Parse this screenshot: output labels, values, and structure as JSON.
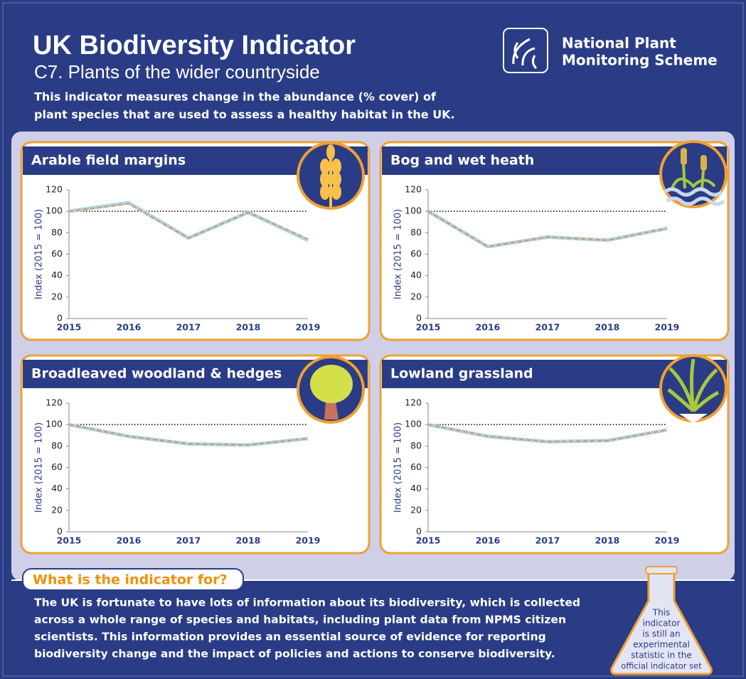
{
  "header": {
    "title": "UK Biodiversity Indicator",
    "subtitle": "C7. Plants of the wider countryside",
    "description": [
      "This indicator measures change in the abundance (% cover) of",
      "plant species that are used to assess a healthy habitat in the UK."
    ],
    "logo": [
      "National Plant",
      "Monitoring Scheme"
    ]
  },
  "chart_data": [
    {
      "type": "line",
      "title": "Arable field margins",
      "y_label": "Index (2015 = 100)",
      "categories": [
        "2015",
        "2016",
        "2017",
        "2018",
        "2019"
      ],
      "series": [
        {
          "color": "#a8d4ee",
          "dashed": false,
          "values": [
            100,
            108,
            75,
            99,
            73
          ]
        },
        {
          "color": "#e8953a",
          "dashed": true,
          "values": [
            100,
            107,
            75,
            99,
            74
          ]
        }
      ],
      "ylim": [
        0,
        120
      ],
      "yticks": [
        0,
        20,
        40,
        60,
        80,
        100,
        120
      ],
      "reference_line": 100
    },
    {
      "type": "line",
      "title": "Bog and wet heath",
      "y_label": "Index (2015 = 100)",
      "categories": [
        "2015",
        "2016",
        "2017",
        "2018",
        "2019"
      ],
      "series": [
        {
          "color": "#a8d4ee",
          "dashed": false,
          "values": [
            100,
            67,
            76,
            73,
            84
          ]
        },
        {
          "color": "#e8953a",
          "dashed": true,
          "values": [
            100,
            67,
            76,
            73,
            84
          ]
        }
      ],
      "ylim": [
        0,
        120
      ],
      "yticks": [
        0,
        20,
        40,
        60,
        80,
        100,
        120
      ],
      "reference_line": 100
    },
    {
      "type": "line",
      "title": "Broadleaved woodland & hedges",
      "y_label": "Index (2015 = 100)",
      "categories": [
        "2015",
        "2016",
        "2017",
        "2018",
        "2019"
      ],
      "series": [
        {
          "color": "#a8d4ee",
          "dashed": false,
          "values": [
            100,
            89,
            82,
            81,
            87
          ]
        },
        {
          "color": "#e8953a",
          "dashed": true,
          "values": [
            100,
            89,
            82,
            81,
            87
          ]
        }
      ],
      "ylim": [
        0,
        120
      ],
      "yticks": [
        0,
        20,
        40,
        60,
        80,
        100,
        120
      ],
      "reference_line": 100
    },
    {
      "type": "line",
      "title": "Lowland grassland",
      "y_label": "Index (2015 = 100)",
      "categories": [
        "2015",
        "2016",
        "2017",
        "2018",
        "2019"
      ],
      "series": [
        {
          "color": "#a8d4ee",
          "dashed": false,
          "values": [
            100,
            89,
            84,
            85,
            95
          ]
        },
        {
          "color": "#e8953a",
          "dashed": true,
          "values": [
            100,
            89,
            84,
            85,
            95
          ]
        }
      ],
      "ylim": [
        0,
        120
      ],
      "yticks": [
        0,
        20,
        40,
        60,
        80,
        100,
        120
      ],
      "reference_line": 100
    }
  ],
  "footer": {
    "heading": "What is the indicator for?",
    "text": [
      "The UK is fortunate to have lots of information about its biodiversity, which is collected",
      "across a whole range of species and habitats, including plant data from NPMS citizen",
      "scientists. This information provides an essential source of evidence for reporting",
      "biodiversity change and the impact of policies and actions to conserve biodiversity."
    ],
    "flask": [
      "This",
      "indicator",
      "is still an",
      "experimental",
      "statistic in the",
      "official indicator set"
    ]
  }
}
